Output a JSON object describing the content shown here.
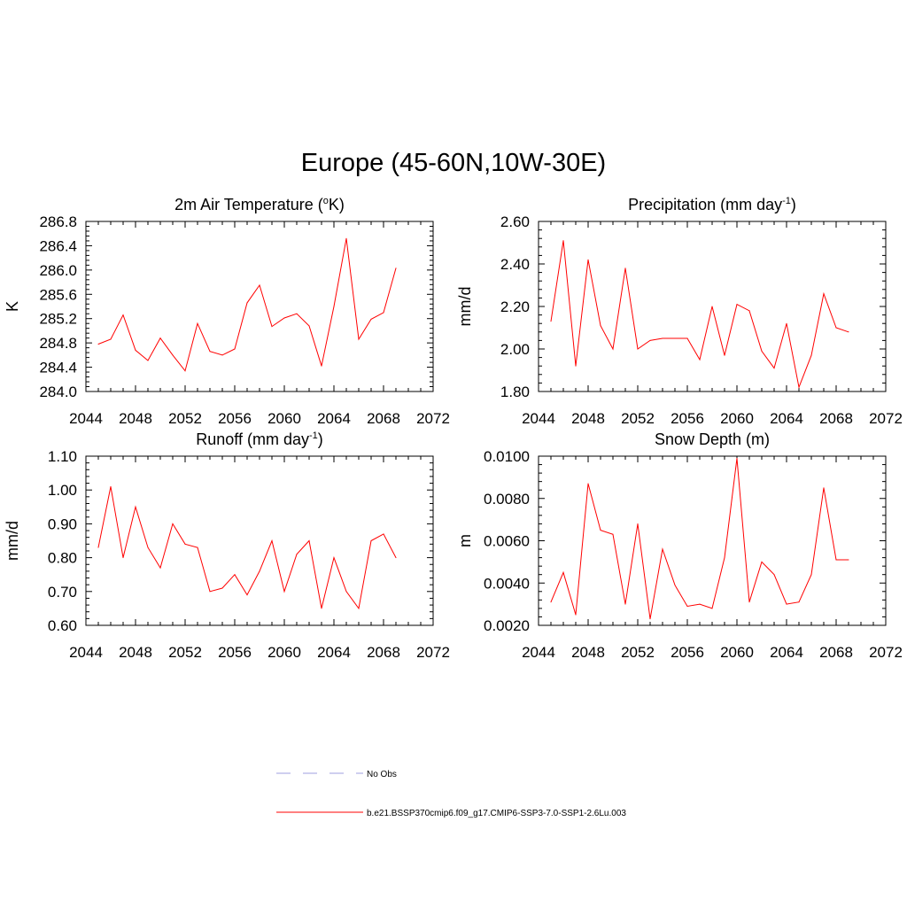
{
  "title": "Europe (45-60N,10W-30E)",
  "legend": [
    {
      "label": "No Obs",
      "color": "#9f9fdf",
      "style": "dashed"
    },
    {
      "label": "b.e21.BSSP370cmip6.f09_g17.CMIP6-SSP3-7.0-SSP1-2.6Lu.003",
      "color": "#ff0000",
      "style": "solid"
    }
  ],
  "line_color": "#ff0000",
  "chart_data": [
    {
      "type": "line",
      "title": "2m Air Temperature (°K)",
      "title_parts": {
        "pre": "2m Air Temperature (",
        "sup": "o",
        "post": "K)"
      },
      "xlabel": "",
      "ylabel": "K",
      "xlim": [
        2044,
        2072
      ],
      "ylim": [
        284.0,
        286.8
      ],
      "x_ticks": [
        "2044",
        "2048",
        "2052",
        "2056",
        "2060",
        "2064",
        "2068",
        "2072"
      ],
      "y_ticks": [
        "284.0",
        "284.4",
        "284.8",
        "285.2",
        "285.6",
        "286.0",
        "286.4",
        "286.8"
      ],
      "x": [
        2045,
        2046,
        2047,
        2048,
        2049,
        2050,
        2051,
        2052,
        2053,
        2054,
        2055,
        2056,
        2057,
        2058,
        2059,
        2060,
        2061,
        2062,
        2063,
        2064,
        2065,
        2066,
        2067,
        2068,
        2069
      ],
      "y": [
        284.78,
        284.86,
        285.26,
        284.68,
        284.51,
        284.88,
        284.6,
        284.34,
        285.12,
        284.66,
        284.6,
        284.7,
        285.46,
        285.75,
        285.07,
        285.21,
        285.28,
        285.08,
        284.42,
        285.4,
        286.52,
        284.86,
        285.19,
        285.3,
        286.03
      ]
    },
    {
      "type": "line",
      "title": "Precipitation (mm day-1)",
      "title_parts": {
        "pre": "Precipitation (mm day",
        "sup": "-1",
        "post": ")"
      },
      "xlabel": "",
      "ylabel": "mm/d",
      "xlim": [
        2044,
        2072
      ],
      "ylim": [
        1.8,
        2.6
      ],
      "x_ticks": [
        "2044",
        "2048",
        "2052",
        "2056",
        "2060",
        "2064",
        "2068",
        "2072"
      ],
      "y_ticks": [
        "1.80",
        "2.00",
        "2.20",
        "2.40",
        "2.60"
      ],
      "x": [
        2045,
        2046,
        2047,
        2048,
        2049,
        2050,
        2051,
        2052,
        2053,
        2054,
        2055,
        2056,
        2057,
        2058,
        2059,
        2060,
        2061,
        2062,
        2063,
        2064,
        2065,
        2066,
        2067,
        2068,
        2069
      ],
      "y": [
        2.13,
        2.51,
        1.92,
        2.42,
        2.11,
        2.0,
        2.38,
        2.0,
        2.04,
        2.05,
        2.05,
        2.05,
        1.95,
        2.2,
        1.97,
        2.21,
        2.18,
        1.99,
        1.91,
        2.12,
        1.82,
        1.97,
        2.26,
        2.1,
        2.08
      ]
    },
    {
      "type": "line",
      "title": "Runoff (mm day-1)",
      "title_parts": {
        "pre": "Runoff (mm day",
        "sup": "-1",
        "post": ")"
      },
      "xlabel": "",
      "ylabel": "mm/d",
      "xlim": [
        2044,
        2072
      ],
      "ylim": [
        0.6,
        1.1
      ],
      "x_ticks": [
        "2044",
        "2048",
        "2052",
        "2056",
        "2060",
        "2064",
        "2068",
        "2072"
      ],
      "y_ticks": [
        "0.60",
        "0.70",
        "0.80",
        "0.90",
        "1.00",
        "1.10"
      ],
      "x": [
        2045,
        2046,
        2047,
        2048,
        2049,
        2050,
        2051,
        2052,
        2053,
        2054,
        2055,
        2056,
        2057,
        2058,
        2059,
        2060,
        2061,
        2062,
        2063,
        2064,
        2065,
        2066,
        2067,
        2068,
        2069
      ],
      "y": [
        0.83,
        1.01,
        0.8,
        0.95,
        0.83,
        0.77,
        0.9,
        0.84,
        0.83,
        0.7,
        0.71,
        0.75,
        0.69,
        0.76,
        0.85,
        0.7,
        0.81,
        0.85,
        0.65,
        0.8,
        0.7,
        0.65,
        0.85,
        0.87,
        0.8
      ]
    },
    {
      "type": "line",
      "title": "Snow Depth (m)",
      "title_parts": {
        "pre": "Snow Depth (m)",
        "sup": "",
        "post": ""
      },
      "xlabel": "",
      "ylabel": "m",
      "xlim": [
        2044,
        2072
      ],
      "ylim": [
        0.002,
        0.01
      ],
      "x_ticks": [
        "2044",
        "2048",
        "2052",
        "2056",
        "2060",
        "2064",
        "2068",
        "2072"
      ],
      "y_ticks": [
        "0.0020",
        "0.0040",
        "0.0060",
        "0.0080",
        "0.0100"
      ],
      "x": [
        2045,
        2046,
        2047,
        2048,
        2049,
        2050,
        2051,
        2052,
        2053,
        2054,
        2055,
        2056,
        2057,
        2058,
        2059,
        2060,
        2061,
        2062,
        2063,
        2064,
        2065,
        2066,
        2067,
        2068,
        2069
      ],
      "y": [
        0.0031,
        0.0045,
        0.0025,
        0.0087,
        0.0065,
        0.0063,
        0.003,
        0.0068,
        0.0023,
        0.0056,
        0.0039,
        0.0029,
        0.003,
        0.0028,
        0.0052,
        0.0099,
        0.0031,
        0.005,
        0.0044,
        0.003,
        0.0031,
        0.0044,
        0.0085,
        0.0051,
        0.0051
      ]
    }
  ]
}
